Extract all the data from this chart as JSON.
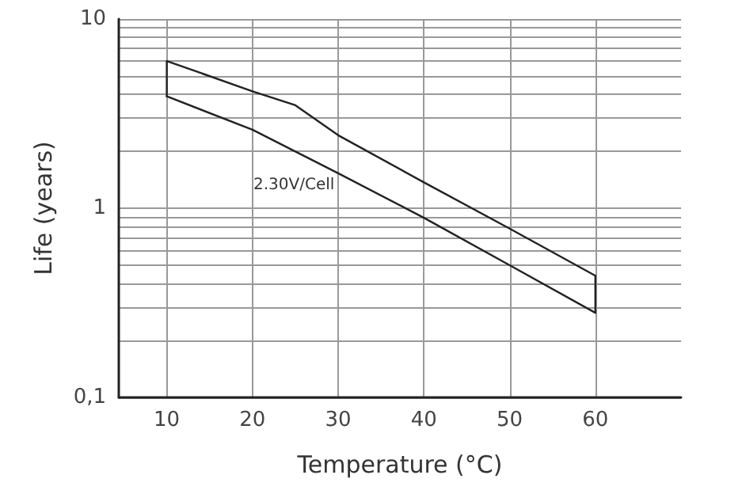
{
  "chart_data": {
    "type": "line",
    "xlabel": "Temperature (°C)",
    "ylabel": "Life (years)",
    "xlim": [
      4.4,
      70
    ],
    "xticks": [
      10,
      20,
      30,
      40,
      50,
      60
    ],
    "ylim": [
      0.1,
      10
    ],
    "log": "y",
    "grid": true,
    "marker": "none",
    "line_style": "solid",
    "yticks": [
      {
        "value": 0.1,
        "label": "0,1"
      },
      {
        "value": 0.2,
        "label": null
      },
      {
        "value": 0.3,
        "label": null
      },
      {
        "value": 0.4,
        "label": null
      },
      {
        "value": 0.5,
        "label": null
      },
      {
        "value": 0.6,
        "label": null
      },
      {
        "value": 0.7,
        "label": null
      },
      {
        "value": 0.8,
        "label": null
      },
      {
        "value": 0.9,
        "label": null
      },
      1,
      {
        "value": 2,
        "label": null
      },
      {
        "value": 3,
        "label": null
      },
      {
        "value": 4,
        "label": null
      },
      {
        "value": 5,
        "label": null
      },
      {
        "value": 6,
        "label": null
      },
      {
        "value": 7,
        "label": null
      },
      {
        "value": 8,
        "label": null
      },
      {
        "value": 9,
        "label": null
      },
      10
    ],
    "x": [
      10,
      10,
      20,
      25,
      30,
      40,
      50,
      60
    ],
    "series": [
      {
        "color": "#222222",
        "values": [
          3.9,
          6.0,
          4.15,
          3.5,
          2.43,
          1.37,
          0.78,
          0.44
        ]
      },
      {
        "color": "#222222",
        "x": [
          10,
          20,
          30,
          40,
          50,
          60,
          60
        ],
        "values": [
          3.9,
          2.6,
          1.53,
          0.89,
          0.5,
          0.28,
          0.44
        ]
      }
    ],
    "annotations": [
      "2.30V/Cell"
    ]
  }
}
